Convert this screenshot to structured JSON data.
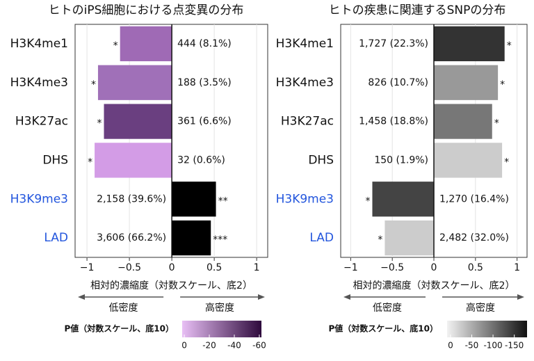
{
  "chart_data": [
    {
      "type": "barh",
      "title": "ヒトのiPS細胞における点変異の分布",
      "categories": [
        "H3K4me1",
        "H3K4me3",
        "H3K27ac",
        "DHS",
        "H3K9me3",
        "LAD"
      ],
      "label_colors": [
        "#111111",
        "#111111",
        "#111111",
        "#111111",
        "#2255dd",
        "#2255dd"
      ],
      "values": [
        -0.61,
        -0.87,
        -0.8,
        -0.91,
        0.52,
        0.46
      ],
      "colors": [
        "#9f6ab5",
        "#a070b8",
        "#6a3f80",
        "#d39ce6",
        "#000000",
        "#000000"
      ],
      "counts": [
        "444 (8.1%)",
        "188 (3.5%)",
        "361 (6.6%)",
        "32 (0.6%)",
        "2,158 (39.6%)",
        "3,606 (66.2%)"
      ],
      "stars": [
        "*",
        "*",
        "*",
        "*",
        "**",
        "***"
      ],
      "xlim": [
        -1.14,
        1.13
      ],
      "xticks": [
        {
          "value": -1,
          "label": "−1"
        },
        {
          "value": -0.5,
          "label": "−0.5"
        },
        0,
        0.5,
        1
      ],
      "grid": true,
      "xlabel": "相対的濃縮度（対数スケール、底2）",
      "low_label": "低密度",
      "high_label": "高密度",
      "colorbar": {
        "label": "P値（対数スケール、底10）",
        "lim": [
          1.7,
          -61.7
        ],
        "ticks": [
          0,
          -20,
          -40,
          -60
        ],
        "colors": [
          "#e8bff5",
          "#2e0a3c"
        ]
      }
    },
    {
      "type": "barh",
      "title": "ヒトの疾患に関連するSNPの分布",
      "categories": [
        "H3K4me1",
        "H3K4me3",
        "H3K27ac",
        "DHS",
        "H3K9me3",
        "LAD"
      ],
      "label_colors": [
        "#111111",
        "#111111",
        "#111111",
        "#111111",
        "#2255dd",
        "#2255dd"
      ],
      "values": [
        0.85,
        0.77,
        0.7,
        0.82,
        -0.74,
        -0.59
      ],
      "colors": [
        "#333333",
        "#999999",
        "#777777",
        "#cccccc",
        "#444444",
        "#cccccc"
      ],
      "counts": [
        "1,727 (22.3%)",
        "826 (10.7%)",
        "1,458 (18.8%)",
        "150 (1.9%)",
        "1,270 (16.4%)",
        "2,482 (32.0%)"
      ],
      "stars": [
        "*",
        "*",
        "*",
        "*",
        "*",
        "*"
      ],
      "xlim": [
        -1.12,
        1.12
      ],
      "xticks": [
        {
          "value": -1,
          "label": "−1"
        },
        {
          "value": -0.5,
          "label": "−0.5"
        },
        0,
        0.5,
        1
      ],
      "grid": true,
      "xlabel": "相対的濃縮度（対数スケール、底2）",
      "low_label": "低密度",
      "high_label": "高密度",
      "colorbar": {
        "label": "P値（対数スケール、底10）",
        "lim": [
          8,
          -180
        ],
        "ticks": [
          0,
          -50,
          -100,
          -150
        ],
        "colors": [
          "#f2f2f2",
          "#111111"
        ]
      }
    }
  ]
}
